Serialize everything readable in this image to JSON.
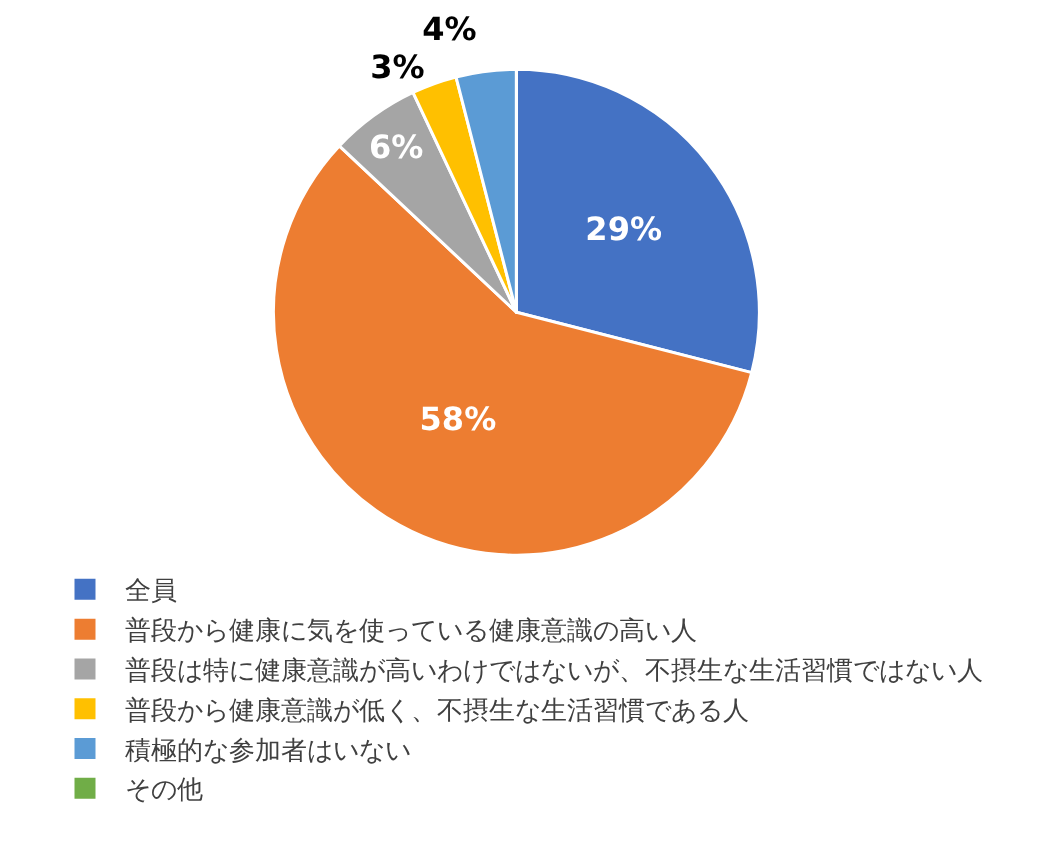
{
  "chart_data": {
    "type": "pie",
    "categories": [
      "全員",
      "普段から健康に気を使っている健康意識の高い人",
      "普段は特に健康意識が高いわけではないが、不摂生な生活習慣ではない人",
      "普段から健康意識が低く、不摂生な生活習慣である人",
      "積極的な参加者はいない",
      "その他"
    ],
    "values": [
      29,
      58,
      6,
      3,
      4,
      0
    ],
    "colors": [
      "#4472c4",
      "#ed7d31",
      "#a5a5a5",
      "#ffc000",
      "#5b9bd5",
      "#70ad47"
    ],
    "value_labels": [
      "29%",
      "58%",
      "6%",
      "3%",
      "4%",
      null
    ],
    "legend": "bottom"
  }
}
